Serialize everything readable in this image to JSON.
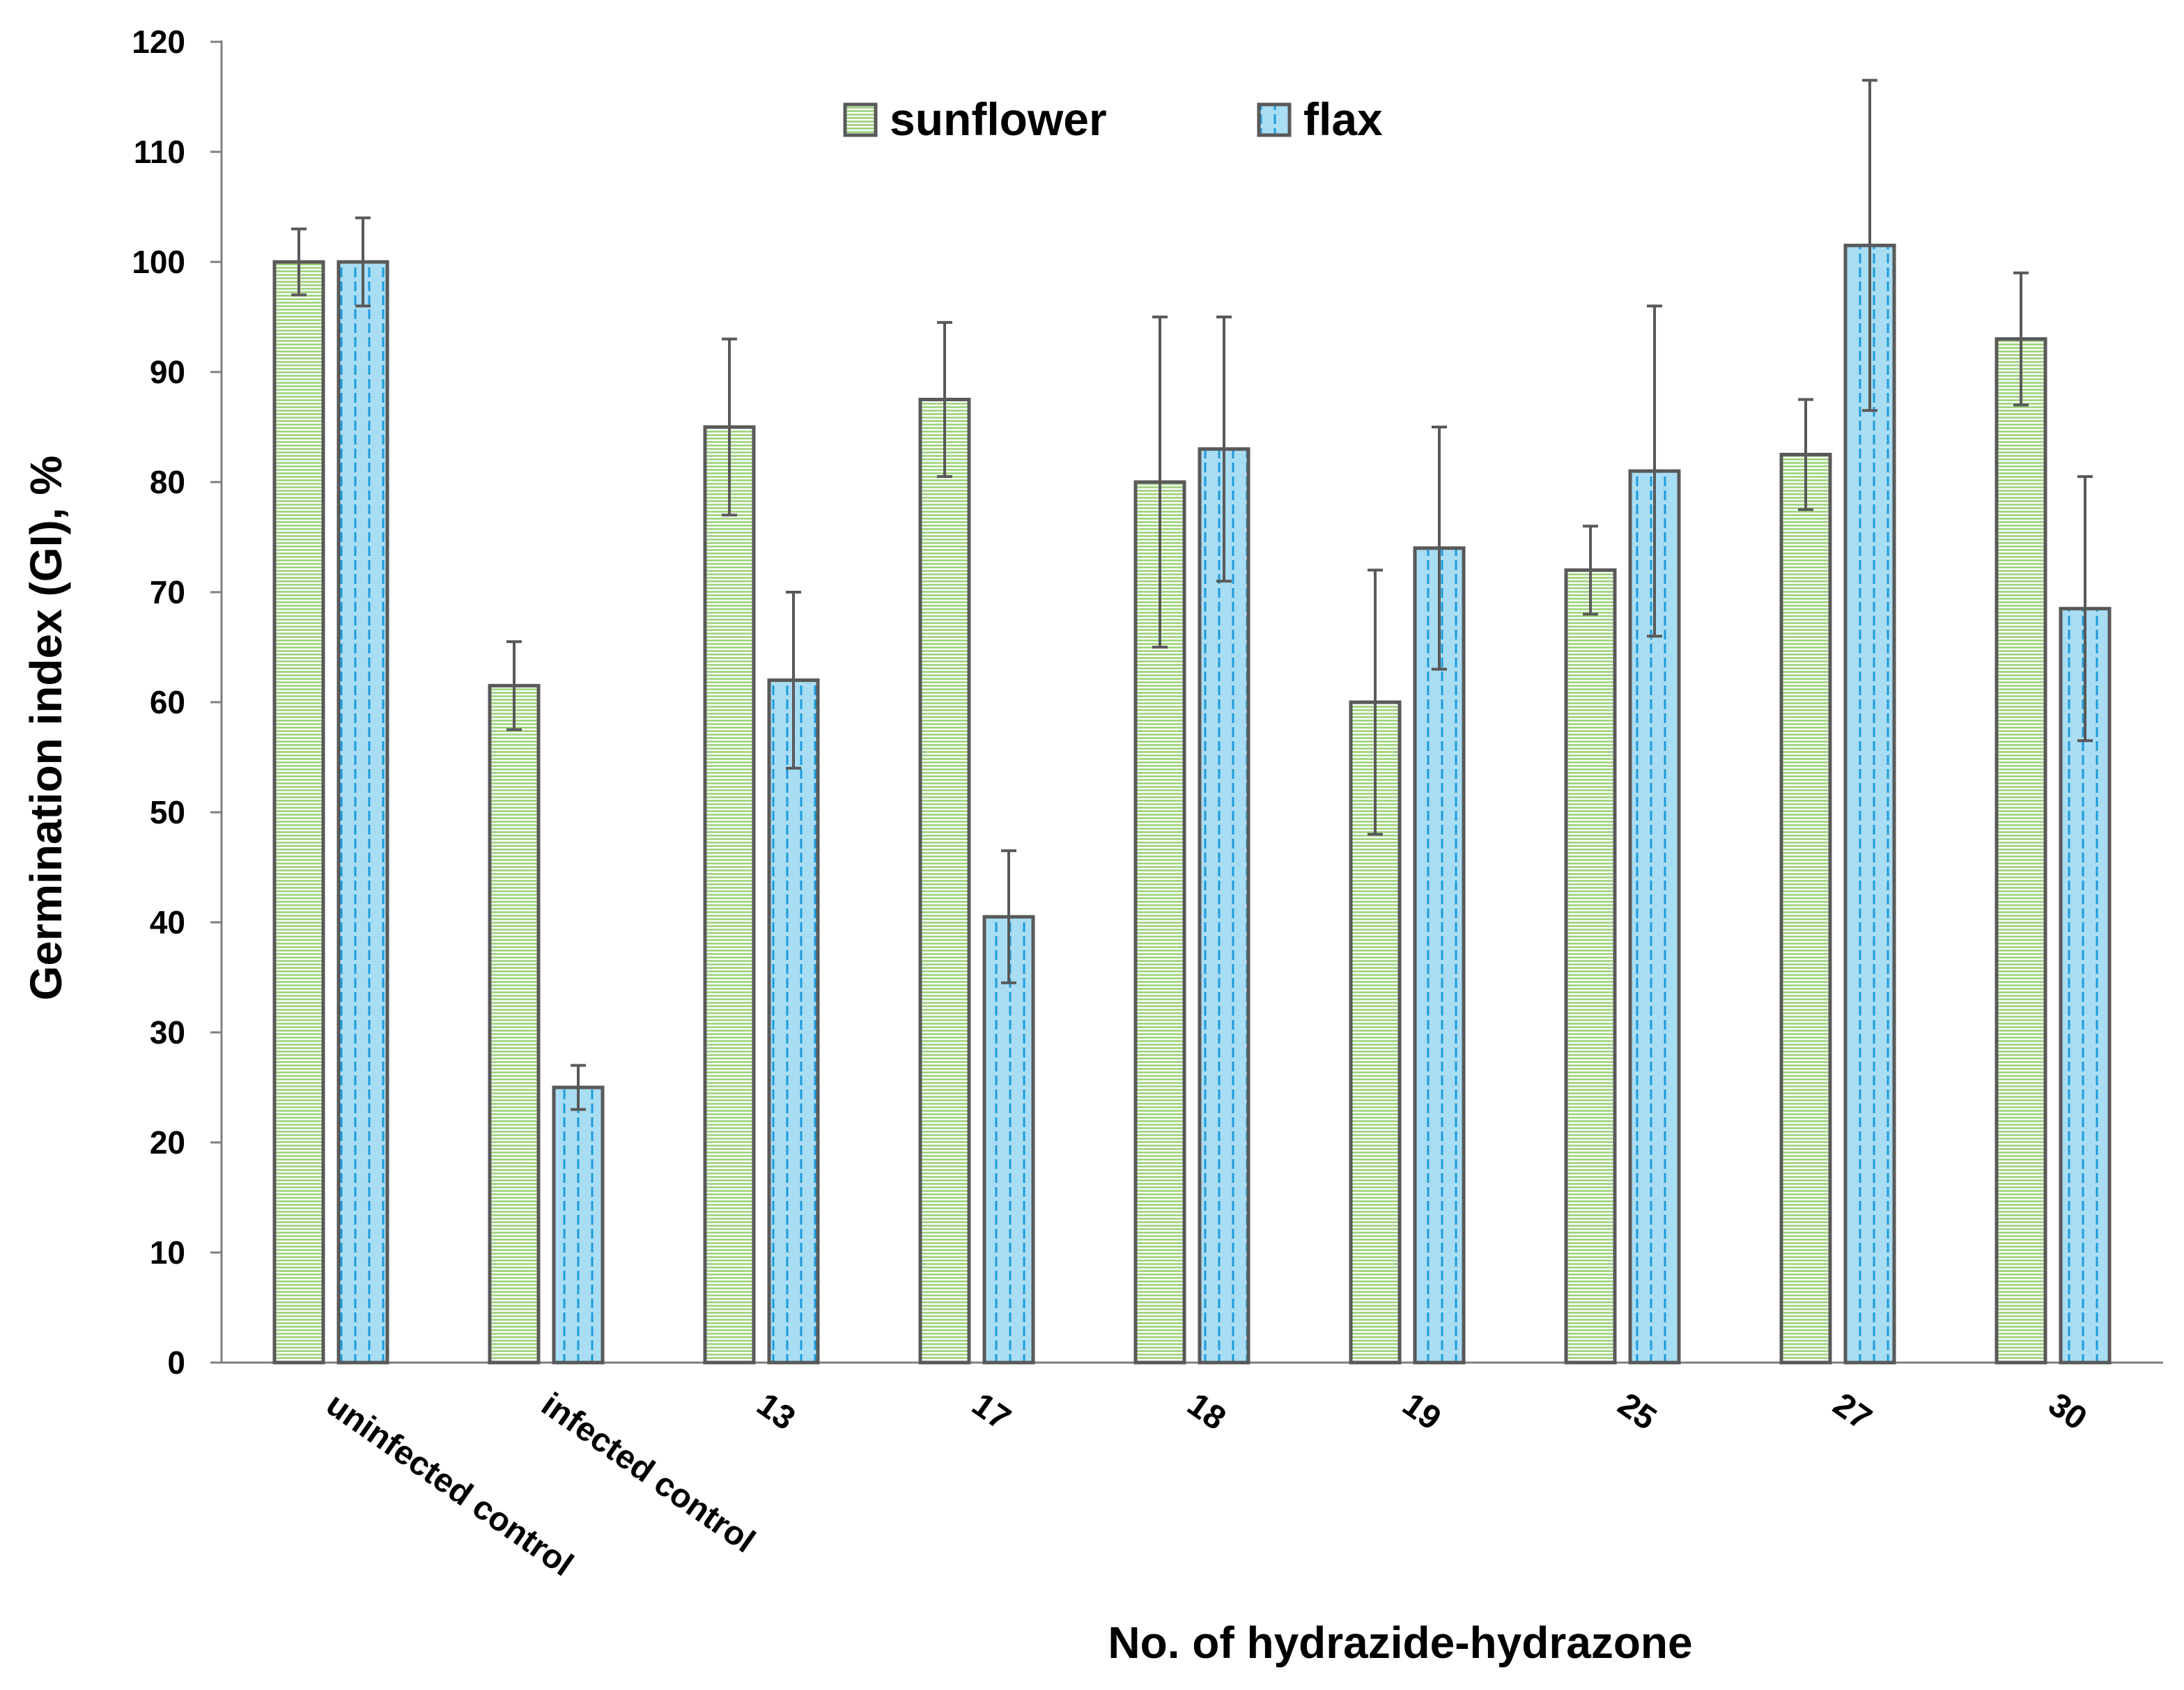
{
  "chart_data": {
    "type": "bar",
    "title": "",
    "xlabel": "No. of hydrazide-hydrazone",
    "ylabel": "Germination index (GI), %",
    "ylim": [
      0,
      120
    ],
    "yticks": [
      0,
      10,
      20,
      30,
      40,
      50,
      60,
      70,
      80,
      90,
      100,
      110,
      120
    ],
    "grid": false,
    "legend_position": "top-center",
    "categories": [
      "uninfected control",
      "infected control",
      "13",
      "17",
      "18",
      "19",
      "25",
      "27",
      "30"
    ],
    "series": [
      {
        "name": "sunflower",
        "color": "#9BD27A",
        "pattern": "horizontal-lines",
        "values": [
          100,
          61.5,
          85,
          87.5,
          80,
          60,
          72,
          82.5,
          93
        ],
        "errors": [
          3,
          4,
          8,
          7,
          15,
          12,
          4,
          5,
          6
        ]
      },
      {
        "name": "flax",
        "color": "#A9DDF3",
        "pattern": "dashed-vertical-lines",
        "values": [
          100,
          25,
          62,
          40.5,
          83,
          74,
          81,
          101.5,
          68.5
        ],
        "errors": [
          4,
          2,
          8,
          6,
          12,
          11,
          15,
          15,
          12
        ]
      }
    ]
  }
}
